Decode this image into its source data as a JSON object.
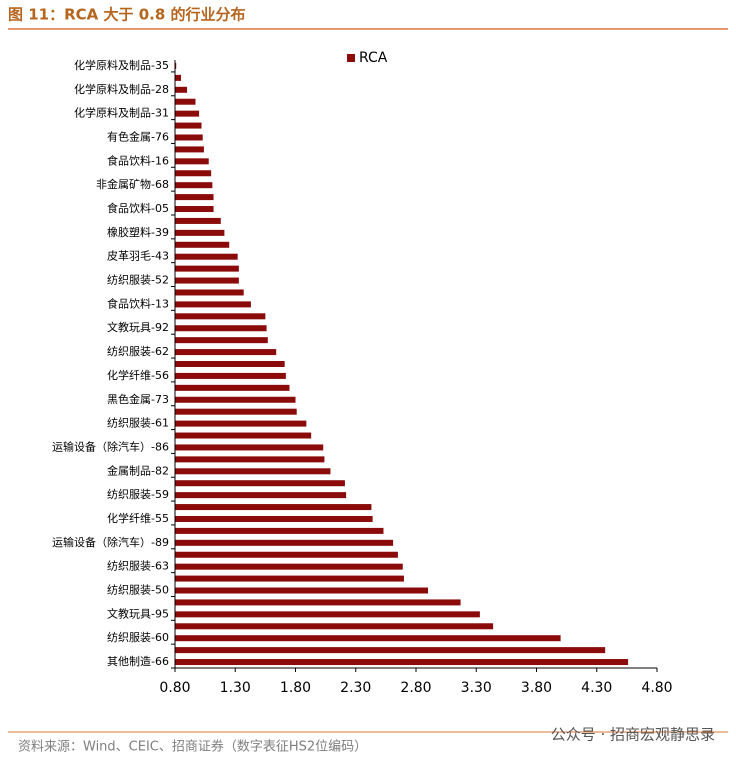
{
  "chart_data": {
    "type": "barh",
    "title": "图 11：RCA 大于 0.8 的行业分布",
    "source": "资料来源：Wind、CEIC、招商证券（数字表征HS2位编码）",
    "watermark": "公众号 · 招商宏观静思录",
    "categories": [
      "化学原料及制品-35",
      null,
      "化学原料及制品-28",
      null,
      "化学原料及制品-31",
      null,
      "有色金属-76",
      null,
      "食品饮料-16",
      null,
      "非金属矿物-68",
      null,
      "食品饮料-05",
      null,
      "橡胶塑料-39",
      null,
      "皮革羽毛-43",
      null,
      "纺织服装-52",
      null,
      "食品饮料-13",
      null,
      "文教玩具-92",
      null,
      "纺织服装-62",
      null,
      "化学纤维-56",
      null,
      "黑色金属-73",
      null,
      "纺织服装-61",
      null,
      "运输设备（除汽车）-86",
      null,
      "金属制品-82",
      null,
      "纺织服装-59",
      null,
      "化学纤维-55",
      null,
      "运输设备（除汽车）-89",
      null,
      "纺织服装-63",
      null,
      "纺织服装-50",
      null,
      "文教玩具-95",
      null,
      "纺织服装-60",
      null,
      "其他制造-66"
    ],
    "series": [
      {
        "name": "RCA",
        "color": "#8b0a0a",
        "values": [
          0.81,
          0.85,
          0.9,
          0.97,
          1.0,
          1.02,
          1.03,
          1.04,
          1.08,
          1.1,
          1.11,
          1.12,
          1.12,
          1.18,
          1.21,
          1.25,
          1.32,
          1.33,
          1.33,
          1.37,
          1.43,
          1.55,
          1.56,
          1.57,
          1.64,
          1.71,
          1.72,
          1.75,
          1.8,
          1.81,
          1.89,
          1.93,
          2.03,
          2.04,
          2.09,
          2.21,
          2.22,
          2.43,
          2.44,
          2.53,
          2.61,
          2.65,
          2.69,
          2.7,
          2.9,
          3.17,
          3.33,
          3.44,
          4.0,
          4.37,
          4.56
        ]
      }
    ],
    "xlim": [
      0.8,
      4.8
    ],
    "xticks": [
      {
        "value": 0.8,
        "label": "0.80"
      },
      {
        "value": 1.3,
        "label": "1.30"
      },
      {
        "value": 1.8,
        "label": "1.80"
      },
      {
        "value": 2.3,
        "label": "2.30"
      },
      {
        "value": 2.8,
        "label": "2.80"
      },
      {
        "value": 3.3,
        "label": "3.30"
      },
      {
        "value": 3.8,
        "label": "3.80"
      },
      {
        "value": 4.3,
        "label": "4.30"
      },
      {
        "value": 4.8,
        "label": "4.80"
      }
    ],
    "legend": "top"
  }
}
